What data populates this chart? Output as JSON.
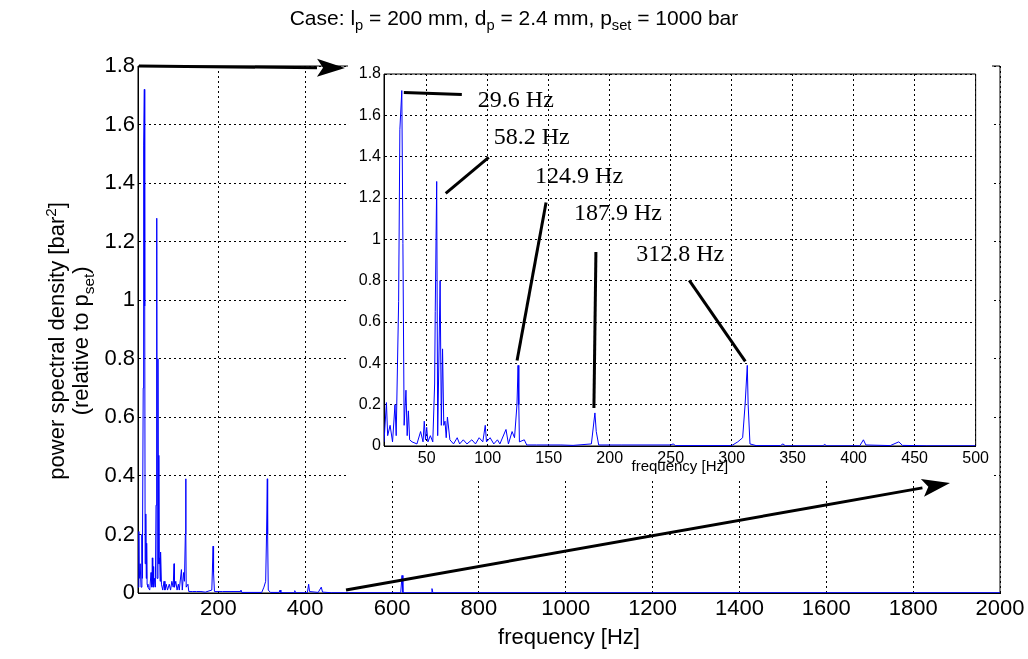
{
  "chart_data": [
    {
      "type": "line",
      "title": "Case: l$_{p}$ = 200 mm, d$_{p}$ = 2.4 mm, p$_{set}$ = 1000 bar",
      "xlabel": "frequency [Hz]",
      "ylabel": "power spectral density [bar$^{2}$]\n(relative to p$_{set}$)",
      "color": "#0000ff",
      "grid": true,
      "legend": false,
      "marker": "none",
      "line_style": "solid",
      "xlim": [
        15,
        2000
      ],
      "xticks": [
        200,
        400,
        600,
        800,
        1000,
        1200,
        1400,
        1600,
        1800,
        2000
      ],
      "ylim": [
        0,
        1.8
      ],
      "yticks": [
        0,
        0.2,
        0.4,
        0.6,
        0.8,
        1,
        1.2,
        1.4,
        1.6,
        1.8
      ],
      "x": [
        15,
        17,
        18,
        20,
        22,
        24,
        25,
        27,
        28,
        29.6,
        30.5,
        31.5,
        33,
        34,
        35,
        36,
        38,
        42,
        45,
        47,
        48,
        49,
        50,
        51,
        53,
        55,
        56.5,
        58.2,
        59,
        61,
        62,
        63,
        64,
        65,
        66,
        67,
        69,
        72,
        75,
        77,
        80,
        83,
        87,
        90,
        93,
        96,
        98,
        99,
        102,
        105,
        108,
        110,
        115,
        117,
        120,
        122,
        124,
        124.9,
        125.5,
        126,
        130,
        132,
        140,
        150,
        160,
        170,
        185,
        187.9,
        189,
        191,
        200,
        210,
        250,
        252,
        254,
        300,
        305,
        309,
        311,
        312.8,
        313.5,
        315,
        320,
        340,
        342,
        344,
        375,
        376,
        378,
        405,
        408,
        410,
        430,
        437,
        440,
        460,
        500,
        620,
        623,
        625,
        690,
        692,
        694,
        800,
        2000
      ],
      "values": [
        0.02,
        0.21,
        0.05,
        0.1,
        0.02,
        0.2,
        0.05,
        0.7,
        1.53,
        1.72,
        0.98,
        0.1,
        0.27,
        0.05,
        0.17,
        0.03,
        0.02,
        0.01,
        0.07,
        0.02,
        0.12,
        0.03,
        0.09,
        0.02,
        0.05,
        0.02,
        0.3,
        1.28,
        0.05,
        0.8,
        0.1,
        0.47,
        0.1,
        0.12,
        0.04,
        0.14,
        0.03,
        0.01,
        0.04,
        0.01,
        0.03,
        0.01,
        0.03,
        0.01,
        0.04,
        0.02,
        0.1,
        0.02,
        0.04,
        0.01,
        0.03,
        0.01,
        0.08,
        0.01,
        0.07,
        0.04,
        0.2,
        0.39,
        0.2,
        0.02,
        0.03,
        0.005,
        0.005,
        0.005,
        0.005,
        0.003,
        0.01,
        0.16,
        0.07,
        0.005,
        0.005,
        0.005,
        0.005,
        0.01,
        0.002,
        0.002,
        0.02,
        0.04,
        0.2,
        0.39,
        0.2,
        0.01,
        0.002,
        0.002,
        0.01,
        0.001,
        0.001,
        0.008,
        0.001,
        0.001,
        0.03,
        0.005,
        0.002,
        0.02,
        0.003,
        0.001,
        0.001,
        0.001,
        0.06,
        0.001,
        0.001,
        0.015,
        0.001,
        0.001,
        0.001
      ]
    },
    {
      "type": "line",
      "xlabel": "frequency [Hz]",
      "color": "#0000ff",
      "grid": true,
      "legend": false,
      "marker": "none",
      "line_style": "solid",
      "xlim": [
        15,
        500
      ],
      "xticks": [
        50,
        100,
        150,
        200,
        250,
        300,
        350,
        400,
        450,
        500
      ],
      "ylim": [
        0,
        1.8
      ],
      "yticks": [
        0,
        0.2,
        0.4,
        0.6,
        0.8,
        1,
        1.2,
        1.4,
        1.6,
        1.8
      ],
      "annotations": [
        {
          "text": "29.6 Hz",
          "x": 29.6,
          "y": 1.72
        },
        {
          "text": "58.2 Hz",
          "x": 58.2,
          "y": 1.28
        },
        {
          "text": "124.9 Hz",
          "x": 124.9,
          "y": 0.39
        },
        {
          "text": "187.9 Hz",
          "x": 187.9,
          "y": 0.16
        },
        {
          "text": "312.8 Hz",
          "x": 312.8,
          "y": 0.39
        }
      ],
      "x": [
        15,
        17,
        18,
        20,
        22,
        24,
        25,
        27,
        28,
        29.6,
        30.5,
        31.5,
        33,
        34,
        35,
        36,
        38,
        42,
        45,
        47,
        48,
        49,
        50,
        51,
        53,
        55,
        56.5,
        57,
        58.2,
        59,
        61,
        62,
        63,
        64,
        65,
        66,
        67,
        69,
        72,
        75,
        77,
        80,
        83,
        87,
        90,
        93,
        96,
        98,
        99,
        102,
        105,
        108,
        110,
        115,
        117,
        120,
        122,
        124,
        124.9,
        125.5,
        126,
        130,
        132,
        140,
        150,
        160,
        170,
        185,
        187.9,
        189,
        191,
        200,
        210,
        250,
        252,
        254,
        300,
        305,
        309,
        311,
        312.8,
        313.5,
        315,
        320,
        340,
        342,
        344,
        375,
        376,
        378,
        405,
        408,
        410,
        430,
        437,
        440,
        460,
        500
      ],
      "values": [
        0.02,
        0.21,
        0.05,
        0.1,
        0.02,
        0.2,
        0.05,
        0.7,
        1.53,
        1.72,
        0.98,
        0.1,
        0.27,
        0.05,
        0.17,
        0.03,
        0.02,
        0.01,
        0.07,
        0.02,
        0.12,
        0.03,
        0.09,
        0.02,
        0.05,
        0.02,
        0.3,
        0.65,
        1.28,
        0.05,
        0.8,
        0.1,
        0.47,
        0.1,
        0.12,
        0.04,
        0.14,
        0.03,
        0.01,
        0.04,
        0.01,
        0.03,
        0.01,
        0.03,
        0.01,
        0.04,
        0.02,
        0.1,
        0.02,
        0.04,
        0.01,
        0.03,
        0.01,
        0.08,
        0.01,
        0.07,
        0.04,
        0.2,
        0.39,
        0.2,
        0.02,
        0.03,
        0.005,
        0.005,
        0.005,
        0.005,
        0.003,
        0.01,
        0.16,
        0.07,
        0.005,
        0.005,
        0.005,
        0.005,
        0.01,
        0.002,
        0.002,
        0.02,
        0.04,
        0.2,
        0.39,
        0.2,
        0.01,
        0.002,
        0.002,
        0.01,
        0.001,
        0.001,
        0.008,
        0.001,
        0.001,
        0.03,
        0.005,
        0.002,
        0.02,
        0.003,
        0.001,
        0.001
      ]
    }
  ]
}
